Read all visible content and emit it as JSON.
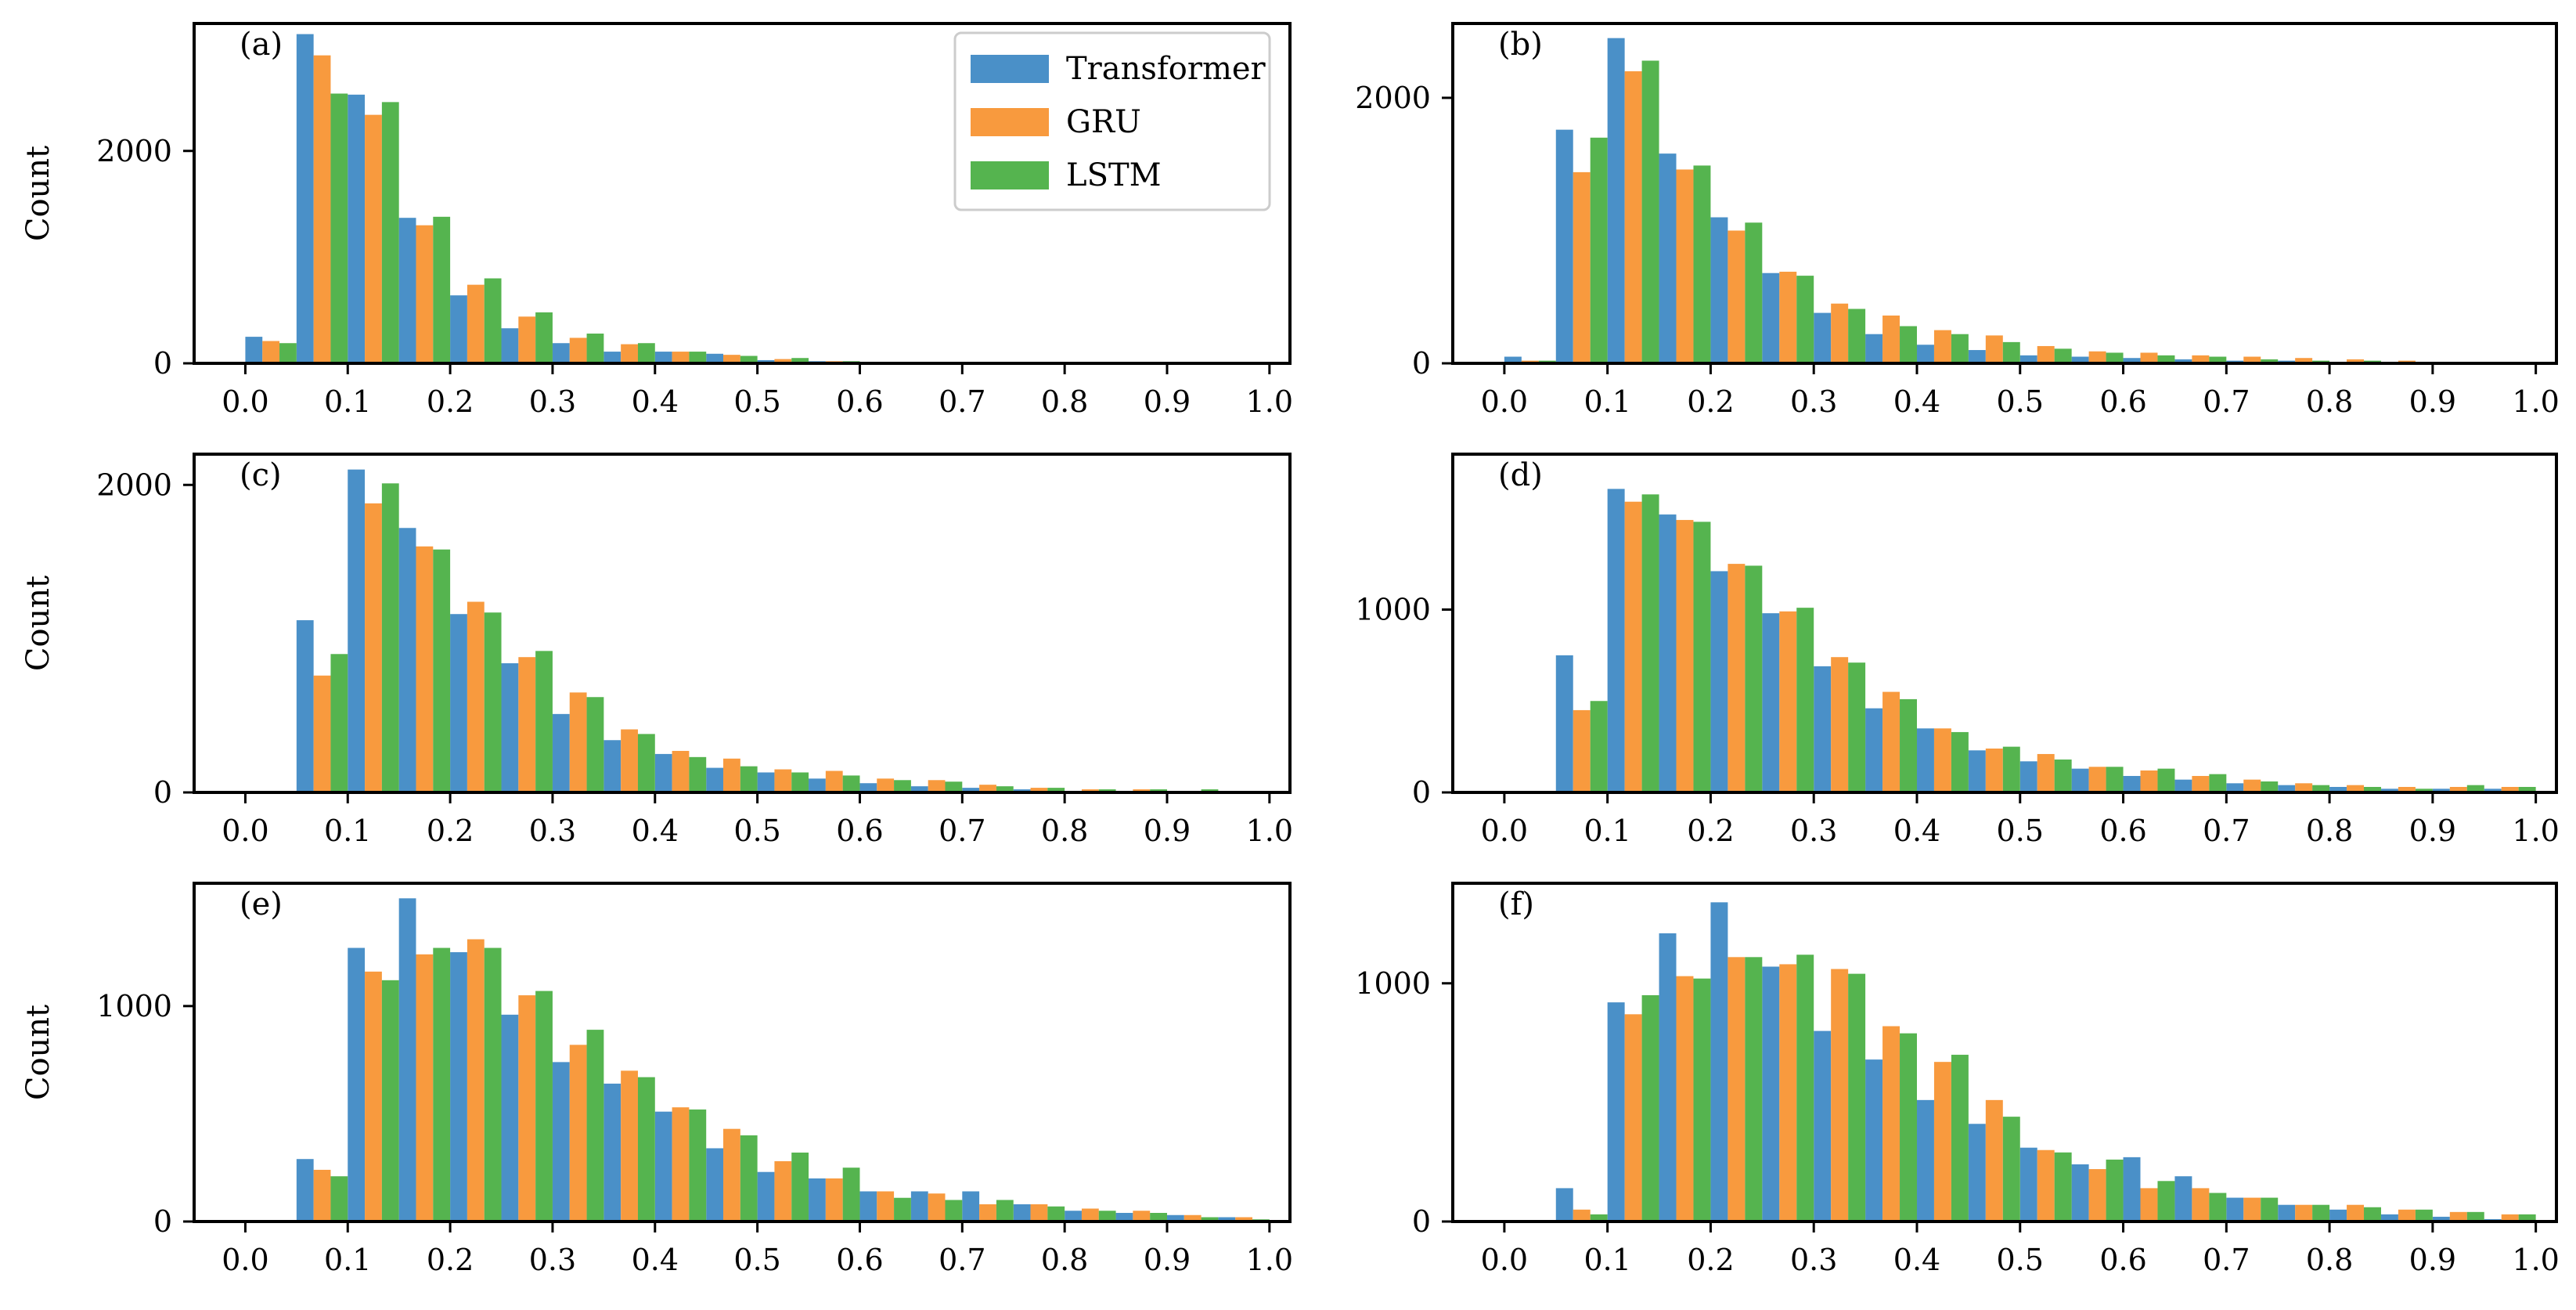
{
  "figure": {
    "colors": {
      "Transformer": "#4a90c8",
      "GRU": "#f89a3e",
      "LSTM": "#55b44f"
    },
    "legend": {
      "entries": [
        "Transformer",
        "GRU",
        "LSTM"
      ],
      "placement": "top-right of panel (a)"
    }
  },
  "chart_data": [
    {
      "panel": "(a)",
      "type": "bar",
      "ylabel": "Count",
      "xlabel": "",
      "xlim": [
        -0.05,
        1.02
      ],
      "ylim": [
        0,
        3200
      ],
      "xticks": [
        "0.0",
        "0.1",
        "0.2",
        "0.3",
        "0.4",
        "0.5",
        "0.6",
        "0.7",
        "0.8",
        "0.9",
        "1.0"
      ],
      "yticks": [
        0,
        2000
      ],
      "bin_starts": [
        0.0,
        0.05,
        0.1,
        0.15,
        0.2,
        0.25,
        0.3,
        0.35,
        0.4,
        0.45,
        0.5,
        0.55,
        0.6,
        0.65,
        0.7,
        0.75,
        0.8,
        0.85,
        0.9,
        0.95
      ],
      "series": [
        {
          "name": "Transformer",
          "values": [
            250,
            3100,
            2530,
            1370,
            640,
            330,
            190,
            110,
            110,
            90,
            30,
            20,
            10,
            10,
            5,
            5,
            0,
            0,
            0,
            0
          ]
        },
        {
          "name": "GRU",
          "values": [
            210,
            2900,
            2340,
            1300,
            740,
            440,
            240,
            180,
            110,
            80,
            40,
            20,
            10,
            10,
            5,
            5,
            0,
            0,
            0,
            0
          ]
        },
        {
          "name": "LSTM",
          "values": [
            190,
            2540,
            2460,
            1380,
            800,
            480,
            280,
            190,
            110,
            70,
            50,
            20,
            10,
            10,
            5,
            5,
            0,
            0,
            0,
            0
          ]
        }
      ]
    },
    {
      "panel": "(b)",
      "type": "bar",
      "ylabel": "",
      "xlabel": "",
      "xlim": [
        -0.05,
        1.02
      ],
      "ylim": [
        0,
        2560
      ],
      "xticks": [
        "0.0",
        "0.1",
        "0.2",
        "0.3",
        "0.4",
        "0.5",
        "0.6",
        "0.7",
        "0.8",
        "0.9",
        "1.0"
      ],
      "yticks": [
        0,
        2000
      ],
      "bin_starts": [
        0.0,
        0.05,
        0.1,
        0.15,
        0.2,
        0.25,
        0.3,
        0.35,
        0.4,
        0.45,
        0.5,
        0.55,
        0.6,
        0.65,
        0.7,
        0.75,
        0.8,
        0.85,
        0.9,
        0.95
      ],
      "series": [
        {
          "name": "Transformer",
          "values": [
            50,
            1760,
            2450,
            1580,
            1100,
            680,
            380,
            220,
            140,
            100,
            60,
            50,
            40,
            30,
            20,
            20,
            10,
            10,
            5,
            5
          ]
        },
        {
          "name": "GRU",
          "values": [
            20,
            1440,
            2200,
            1460,
            1000,
            690,
            450,
            360,
            250,
            210,
            130,
            90,
            80,
            60,
            50,
            40,
            30,
            20,
            10,
            10
          ]
        },
        {
          "name": "LSTM",
          "values": [
            20,
            1700,
            2280,
            1490,
            1060,
            660,
            410,
            280,
            220,
            160,
            110,
            80,
            60,
            50,
            30,
            20,
            20,
            10,
            10,
            5
          ]
        }
      ]
    },
    {
      "panel": "(c)",
      "type": "bar",
      "ylabel": "Count",
      "xlabel": "",
      "xlim": [
        -0.05,
        1.02
      ],
      "ylim": [
        0,
        2200
      ],
      "xticks": [
        "0.0",
        "0.1",
        "0.2",
        "0.3",
        "0.4",
        "0.5",
        "0.6",
        "0.7",
        "0.8",
        "0.9",
        "1.0"
      ],
      "yticks": [
        0,
        2000
      ],
      "bin_starts": [
        0.0,
        0.05,
        0.1,
        0.15,
        0.2,
        0.25,
        0.3,
        0.35,
        0.4,
        0.45,
        0.5,
        0.55,
        0.6,
        0.65,
        0.7,
        0.75,
        0.8,
        0.85,
        0.9,
        0.95
      ],
      "series": [
        {
          "name": "Transformer",
          "values": [
            0,
            1120,
            2100,
            1720,
            1160,
            840,
            510,
            340,
            250,
            160,
            130,
            90,
            60,
            40,
            30,
            20,
            10,
            10,
            10,
            5
          ]
        },
        {
          "name": "GRU",
          "values": [
            0,
            760,
            1880,
            1600,
            1240,
            880,
            650,
            410,
            270,
            220,
            150,
            140,
            90,
            80,
            50,
            30,
            20,
            20,
            10,
            10
          ]
        },
        {
          "name": "LSTM",
          "values": [
            0,
            900,
            2010,
            1580,
            1170,
            920,
            620,
            380,
            230,
            170,
            130,
            110,
            80,
            70,
            40,
            30,
            20,
            20,
            20,
            10
          ]
        }
      ]
    },
    {
      "panel": "(d)",
      "type": "bar",
      "ylabel": "",
      "xlabel": "",
      "xlim": [
        -0.05,
        1.02
      ],
      "ylim": [
        0,
        1850
      ],
      "xticks": [
        "0.0",
        "0.1",
        "0.2",
        "0.3",
        "0.4",
        "0.5",
        "0.6",
        "0.7",
        "0.8",
        "0.9",
        "1.0"
      ],
      "yticks": [
        0,
        1000
      ],
      "bin_starts": [
        0.0,
        0.05,
        0.1,
        0.15,
        0.2,
        0.25,
        0.3,
        0.35,
        0.4,
        0.45,
        0.5,
        0.55,
        0.6,
        0.65,
        0.7,
        0.75,
        0.8,
        0.85,
        0.9,
        0.95
      ],
      "series": [
        {
          "name": "Transformer",
          "values": [
            0,
            750,
            1660,
            1520,
            1210,
            980,
            690,
            460,
            350,
            230,
            170,
            130,
            90,
            70,
            50,
            40,
            30,
            20,
            20,
            20
          ]
        },
        {
          "name": "GRU",
          "values": [
            0,
            450,
            1590,
            1490,
            1250,
            990,
            740,
            550,
            350,
            240,
            210,
            140,
            120,
            90,
            70,
            50,
            40,
            30,
            30,
            30
          ]
        },
        {
          "name": "LSTM",
          "values": [
            0,
            500,
            1630,
            1480,
            1240,
            1010,
            710,
            510,
            330,
            250,
            180,
            140,
            130,
            100,
            60,
            40,
            30,
            20,
            40,
            30
          ]
        }
      ]
    },
    {
      "panel": "(e)",
      "type": "bar",
      "ylabel": "Count",
      "xlabel": "",
      "xlim": [
        -0.05,
        1.02
      ],
      "ylim": [
        0,
        1570
      ],
      "xticks": [
        "0.0",
        "0.1",
        "0.2",
        "0.3",
        "0.4",
        "0.5",
        "0.6",
        "0.7",
        "0.8",
        "0.9",
        "1.0"
      ],
      "yticks": [
        0,
        1000
      ],
      "bin_starts": [
        0.0,
        0.05,
        0.1,
        0.15,
        0.2,
        0.25,
        0.3,
        0.35,
        0.4,
        0.45,
        0.5,
        0.55,
        0.6,
        0.65,
        0.7,
        0.75,
        0.8,
        0.85,
        0.9,
        0.95
      ],
      "series": [
        {
          "name": "Transformer",
          "values": [
            0,
            290,
            1270,
            1500,
            1250,
            960,
            740,
            640,
            510,
            340,
            230,
            200,
            140,
            140,
            140,
            80,
            50,
            40,
            30,
            20
          ]
        },
        {
          "name": "GRU",
          "values": [
            0,
            240,
            1160,
            1240,
            1310,
            1050,
            820,
            700,
            530,
            430,
            280,
            200,
            140,
            130,
            80,
            80,
            60,
            50,
            30,
            20
          ]
        },
        {
          "name": "LSTM",
          "values": [
            0,
            210,
            1120,
            1270,
            1270,
            1070,
            890,
            670,
            520,
            400,
            320,
            250,
            110,
            100,
            100,
            70,
            50,
            40,
            20,
            10
          ]
        }
      ]
    },
    {
      "panel": "(f)",
      "type": "bar",
      "ylabel": "",
      "xlabel": "",
      "xlim": [
        -0.05,
        1.02
      ],
      "ylim": [
        0,
        1420
      ],
      "xticks": [
        "0.0",
        "0.1",
        "0.2",
        "0.3",
        "0.4",
        "0.5",
        "0.6",
        "0.7",
        "0.8",
        "0.9",
        "1.0"
      ],
      "yticks": [
        0,
        1000
      ],
      "bin_starts": [
        0.0,
        0.05,
        0.1,
        0.15,
        0.2,
        0.25,
        0.3,
        0.35,
        0.4,
        0.45,
        0.5,
        0.55,
        0.6,
        0.65,
        0.7,
        0.75,
        0.8,
        0.85,
        0.9,
        0.95
      ],
      "series": [
        {
          "name": "Transformer",
          "values": [
            0,
            140,
            920,
            1210,
            1340,
            1070,
            800,
            680,
            510,
            410,
            310,
            240,
            270,
            190,
            100,
            70,
            50,
            30,
            20,
            10
          ]
        },
        {
          "name": "GRU",
          "values": [
            0,
            50,
            870,
            1030,
            1110,
            1080,
            1060,
            820,
            670,
            510,
            300,
            220,
            140,
            140,
            100,
            70,
            70,
            50,
            40,
            30
          ]
        },
        {
          "name": "LSTM",
          "values": [
            0,
            30,
            950,
            1020,
            1110,
            1120,
            1040,
            790,
            700,
            440,
            290,
            260,
            170,
            120,
            100,
            70,
            60,
            50,
            40,
            30
          ]
        }
      ]
    }
  ]
}
